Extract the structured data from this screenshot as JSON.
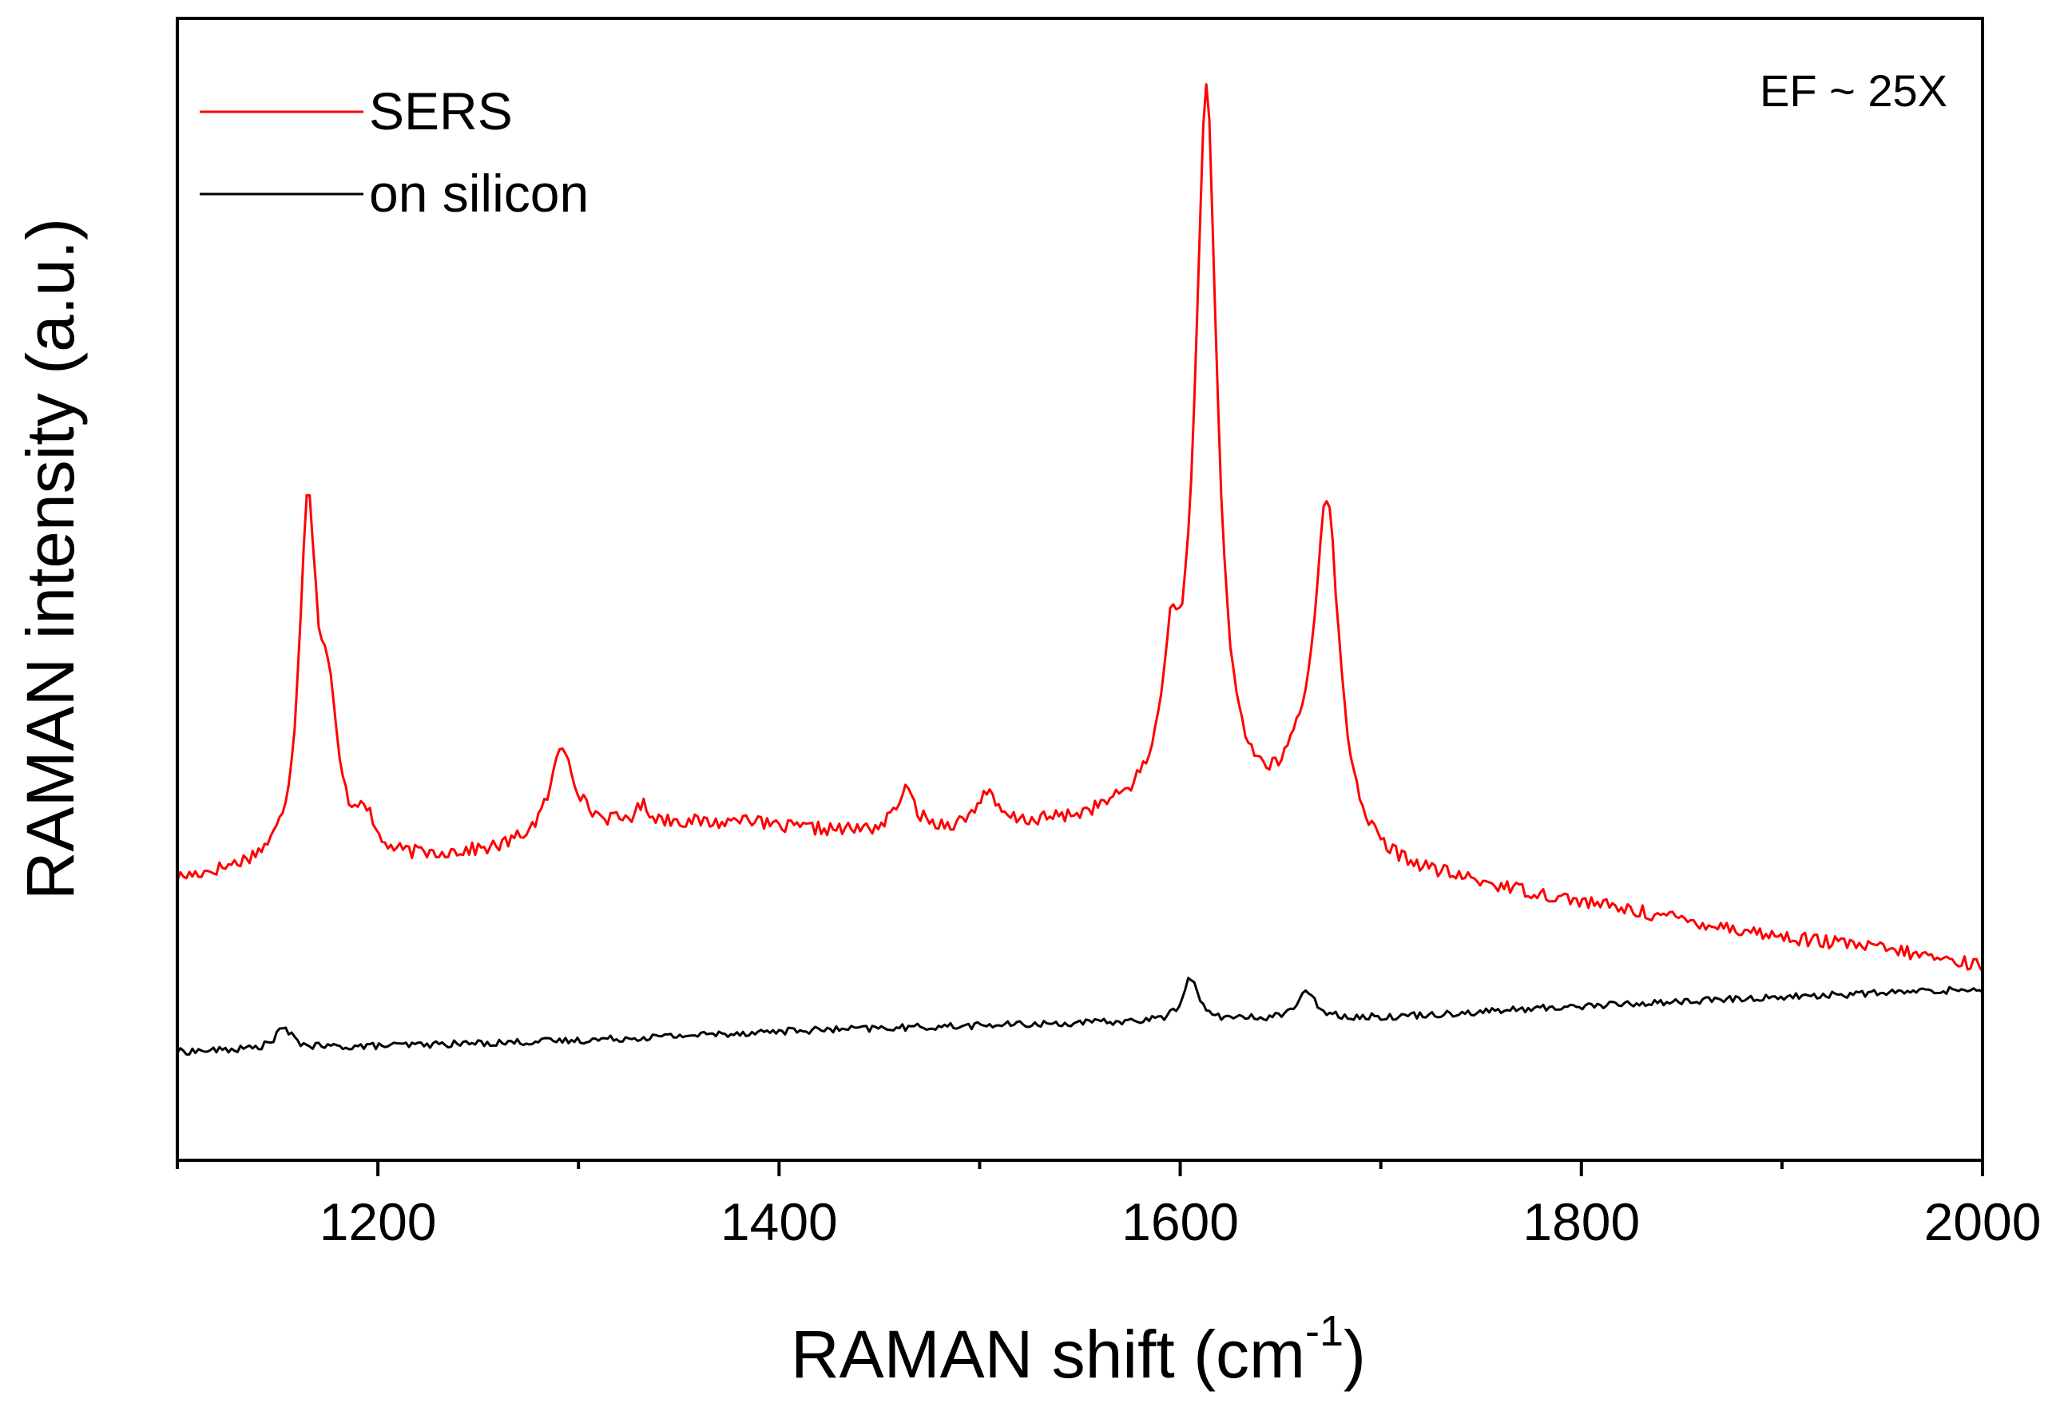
{
  "chart_data": {
    "type": "line",
    "title": "",
    "xlabel": "RAMAN shift (cm",
    "xlabel_sup": "-1",
    "xlabel_close": ")",
    "ylabel": "RAMAN intensity (a.u.)",
    "xlim": [
      1100,
      2000
    ],
    "ylim": [
      0,
      100
    ],
    "x_ticks": [
      1200,
      1400,
      1600,
      1800,
      2000
    ],
    "x_tick_labels": [
      "1200",
      "1400",
      "1600",
      "1800",
      "2000"
    ],
    "x_minor_ticks": [
      1100,
      1300,
      1500,
      1700,
      1900
    ],
    "y_ticks_visible": false,
    "grid": false,
    "legend_position": "top-left",
    "annotation": "EF ~ 25X",
    "series": [
      {
        "name": "SERS",
        "color": "#ff0000",
        "baseline": [
          [
            1100,
            24.5
          ],
          [
            1140,
            25.5
          ],
          [
            1200,
            26.0
          ],
          [
            1260,
            27.0
          ],
          [
            1300,
            29.0
          ],
          [
            1350,
            29.5
          ],
          [
            1400,
            29.0
          ],
          [
            1450,
            28.5
          ],
          [
            1500,
            28.8
          ],
          [
            1550,
            29.5
          ],
          [
            1580,
            30.5
          ],
          [
            1600,
            31.0
          ],
          [
            1650,
            29.5
          ],
          [
            1700,
            25.5
          ],
          [
            1750,
            24.0
          ],
          [
            1800,
            22.5
          ],
          [
            1850,
            21.0
          ],
          [
            1900,
            19.5
          ],
          [
            1950,
            18.5
          ],
          [
            2000,
            17.0
          ]
        ],
        "peaks": [
          {
            "center": 1165,
            "height": 30.0,
            "width": 5.0
          },
          {
            "center": 1175,
            "height": 12.0,
            "width": 6.0
          },
          {
            "center": 1193,
            "height": 3.5,
            "width": 5.0
          },
          {
            "center": 1292,
            "height": 7.5,
            "width": 7.0
          },
          {
            "center": 1332,
            "height": 1.5,
            "width": 4.0
          },
          {
            "center": 1383,
            "height": 1.0,
            "width": 4.0
          },
          {
            "center": 1463,
            "height": 3.5,
            "width": 6.0
          },
          {
            "center": 1503,
            "height": 3.0,
            "width": 6.0
          },
          {
            "center": 1595,
            "height": 9.5,
            "width": 5.0
          },
          {
            "center": 1613,
            "height": 62.0,
            "width": 6.5
          },
          {
            "center": 1658,
            "height": 2.5,
            "width": 6.0
          },
          {
            "center": 1673,
            "height": 29.5,
            "width": 7.5
          }
        ],
        "noise": 0.6
      },
      {
        "name": "on silicon",
        "color": "#000000",
        "baseline": [
          [
            1100,
            9.5
          ],
          [
            1200,
            10.0
          ],
          [
            1300,
            10.5
          ],
          [
            1400,
            11.3
          ],
          [
            1500,
            11.8
          ],
          [
            1600,
            12.2
          ],
          [
            1700,
            12.5
          ],
          [
            1800,
            13.5
          ],
          [
            1900,
            14.3
          ],
          [
            2000,
            15.0
          ]
        ],
        "peaks": [
          {
            "center": 1153,
            "height": 1.8,
            "width": 5.0
          },
          {
            "center": 1605,
            "height": 3.8,
            "width": 4.5
          },
          {
            "center": 1663,
            "height": 2.2,
            "width": 6.0
          }
        ],
        "noise": 0.3
      }
    ]
  }
}
